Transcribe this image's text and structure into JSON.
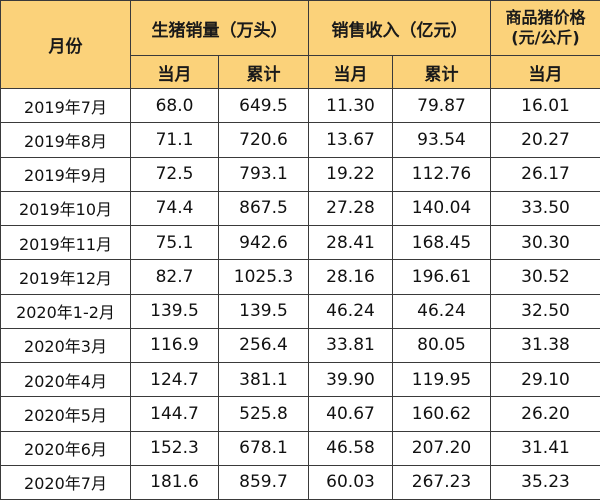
{
  "header": {
    "month": "月份",
    "sales_volume": "生猪销量（万头）",
    "sales_revenue": "销售收入（亿元）",
    "price_line1": "商品猪价格",
    "price_line2": "(元/公斤)",
    "sub_current": "当月",
    "sub_cumulative": "累计"
  },
  "rows": [
    {
      "month": "2019年7月",
      "vol_month": "68.0",
      "vol_cum": "649.5",
      "rev_month": "11.30",
      "rev_cum": "79.87",
      "price": "16.01"
    },
    {
      "month": "2019年8月",
      "vol_month": "71.1",
      "vol_cum": "720.6",
      "rev_month": "13.67",
      "rev_cum": "93.54",
      "price": "20.27"
    },
    {
      "month": "2019年9月",
      "vol_month": "72.5",
      "vol_cum": "793.1",
      "rev_month": "19.22",
      "rev_cum": "112.76",
      "price": "26.17"
    },
    {
      "month": "2019年10月",
      "vol_month": "74.4",
      "vol_cum": "867.5",
      "rev_month": "27.28",
      "rev_cum": "140.04",
      "price": "33.50"
    },
    {
      "month": "2019年11月",
      "vol_month": "75.1",
      "vol_cum": "942.6",
      "rev_month": "28.41",
      "rev_cum": "168.45",
      "price": "30.30"
    },
    {
      "month": "2019年12月",
      "vol_month": "82.7",
      "vol_cum": "1025.3",
      "rev_month": "28.16",
      "rev_cum": "196.61",
      "price": "30.52"
    },
    {
      "month": "2020年1-2月",
      "vol_month": "139.5",
      "vol_cum": "139.5",
      "rev_month": "46.24",
      "rev_cum": "46.24",
      "price": "32.50"
    },
    {
      "month": "2020年3月",
      "vol_month": "116.9",
      "vol_cum": "256.4",
      "rev_month": "33.81",
      "rev_cum": "80.05",
      "price": "31.38"
    },
    {
      "month": "2020年4月",
      "vol_month": "124.7",
      "vol_cum": "381.1",
      "rev_month": "39.90",
      "rev_cum": "119.95",
      "price": "29.10"
    },
    {
      "month": "2020年5月",
      "vol_month": "144.7",
      "vol_cum": "525.8",
      "rev_month": "40.67",
      "rev_cum": "160.62",
      "price": "26.20"
    },
    {
      "month": "2020年6月",
      "vol_month": "152.3",
      "vol_cum": "678.1",
      "rev_month": "46.58",
      "rev_cum": "207.20",
      "price": "31.41"
    },
    {
      "month": "2020年7月",
      "vol_month": "181.6",
      "vol_cum": "859.7",
      "rev_month": "60.03",
      "rev_cum": "267.23",
      "price": "35.23"
    }
  ]
}
